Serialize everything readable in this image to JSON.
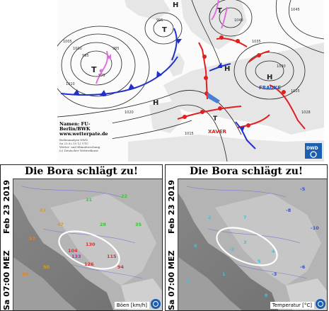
{
  "synoptic_map": {
    "credits": {
      "names": "Namen: FU-Berlin/BWK",
      "website": "www.wetterpate.de",
      "footnote_lines": [
        "Bodenanalyse DWD",
        "Sa 23.02.19 12 UTC",
        "Wetter- und Klimaforschung",
        "(c) Deutscher Wetterdienst"
      ]
    },
    "pressure_centers": [
      {
        "type": "low",
        "label": "T",
        "pressure": "965"
      },
      {
        "type": "low",
        "label": "T",
        "pressure": "990"
      },
      {
        "type": "low",
        "label": "T",
        "pressure": "963"
      },
      {
        "type": "high",
        "label": "H",
        "pressure": "1040"
      },
      {
        "type": "high",
        "label": "H",
        "pressure": "1035"
      },
      {
        "type": "high",
        "label": "H",
        "pressure": "1025"
      },
      {
        "type": "high",
        "label": "H",
        "pressure": "1015"
      }
    ],
    "system_names": {
      "high": "FRAUKE",
      "low": "XAVER"
    },
    "isobar_labels": [
      "1005",
      "1000",
      "995",
      "990",
      "985",
      "975",
      "1010",
      "1015",
      "1020",
      "1025",
      "1030",
      "1035",
      "1040",
      "1045",
      "1028"
    ],
    "colors": {
      "warm_front": "#e02020",
      "cold_front": "#2030c8",
      "occlusion": "#e070e0",
      "frauke": "#1f4fd0",
      "xaver": "#e02020",
      "arrow": "#4a7fd0"
    },
    "logo": {
      "name": "dwd-logo",
      "text": "DWD"
    }
  },
  "panels": [
    {
      "title": "Die Bora schlägt zu!",
      "date": "Feb 23 2019",
      "time": "Sa 07:00 MEZ",
      "legend": "Böen [km/h]",
      "parameter": "wind-gusts",
      "stations": [
        {
          "v": "104",
          "c": "#e03030"
        },
        {
          "v": "130",
          "c": "#e03030"
        },
        {
          "v": "126",
          "c": "#e03030"
        },
        {
          "v": "133",
          "c": "#c020c0"
        },
        {
          "v": "115",
          "c": "#e03030"
        },
        {
          "v": "94",
          "c": "#e03030"
        },
        {
          "v": "57",
          "c": "#e08030"
        },
        {
          "v": "43",
          "c": "#d0a020"
        },
        {
          "v": "31",
          "c": "#40c040"
        },
        {
          "v": "22",
          "c": "#40c040"
        },
        {
          "v": "35",
          "c": "#40c040"
        },
        {
          "v": "47",
          "c": "#d0a020"
        },
        {
          "v": "50",
          "c": "#d0a020"
        },
        {
          "v": "63",
          "c": "#e08030"
        },
        {
          "v": "28",
          "c": "#40c040"
        }
      ],
      "highlight": "ellipse"
    },
    {
      "title": "Die Bora schlägt zu!",
      "date": "Feb 23 2019",
      "time": "Sa 07:00 MEZ",
      "legend": "Temperatur [°C]",
      "parameter": "temperature",
      "stations": [
        {
          "v": "-2",
          "c": "#40c0e0"
        },
        {
          "v": "3",
          "c": "#40c0e0"
        },
        {
          "v": "5",
          "c": "#40c0e0"
        },
        {
          "v": "4",
          "c": "#40c0e0"
        },
        {
          "v": "-8",
          "c": "#3050d0"
        },
        {
          "v": "-5",
          "c": "#3050d0"
        },
        {
          "v": "-10",
          "c": "#3050d0"
        },
        {
          "v": "2",
          "c": "#40c0e0"
        },
        {
          "v": "6",
          "c": "#40c0e0"
        },
        {
          "v": "1",
          "c": "#40c0e0"
        },
        {
          "v": "-3",
          "c": "#3050d0"
        },
        {
          "v": "7",
          "c": "#40c0e0"
        },
        {
          "v": "0",
          "c": "#40c0e0"
        },
        {
          "v": "-6",
          "c": "#3050d0"
        },
        {
          "v": "8",
          "c": "#40c0e0"
        }
      ],
      "highlight": "ellipse"
    }
  ]
}
